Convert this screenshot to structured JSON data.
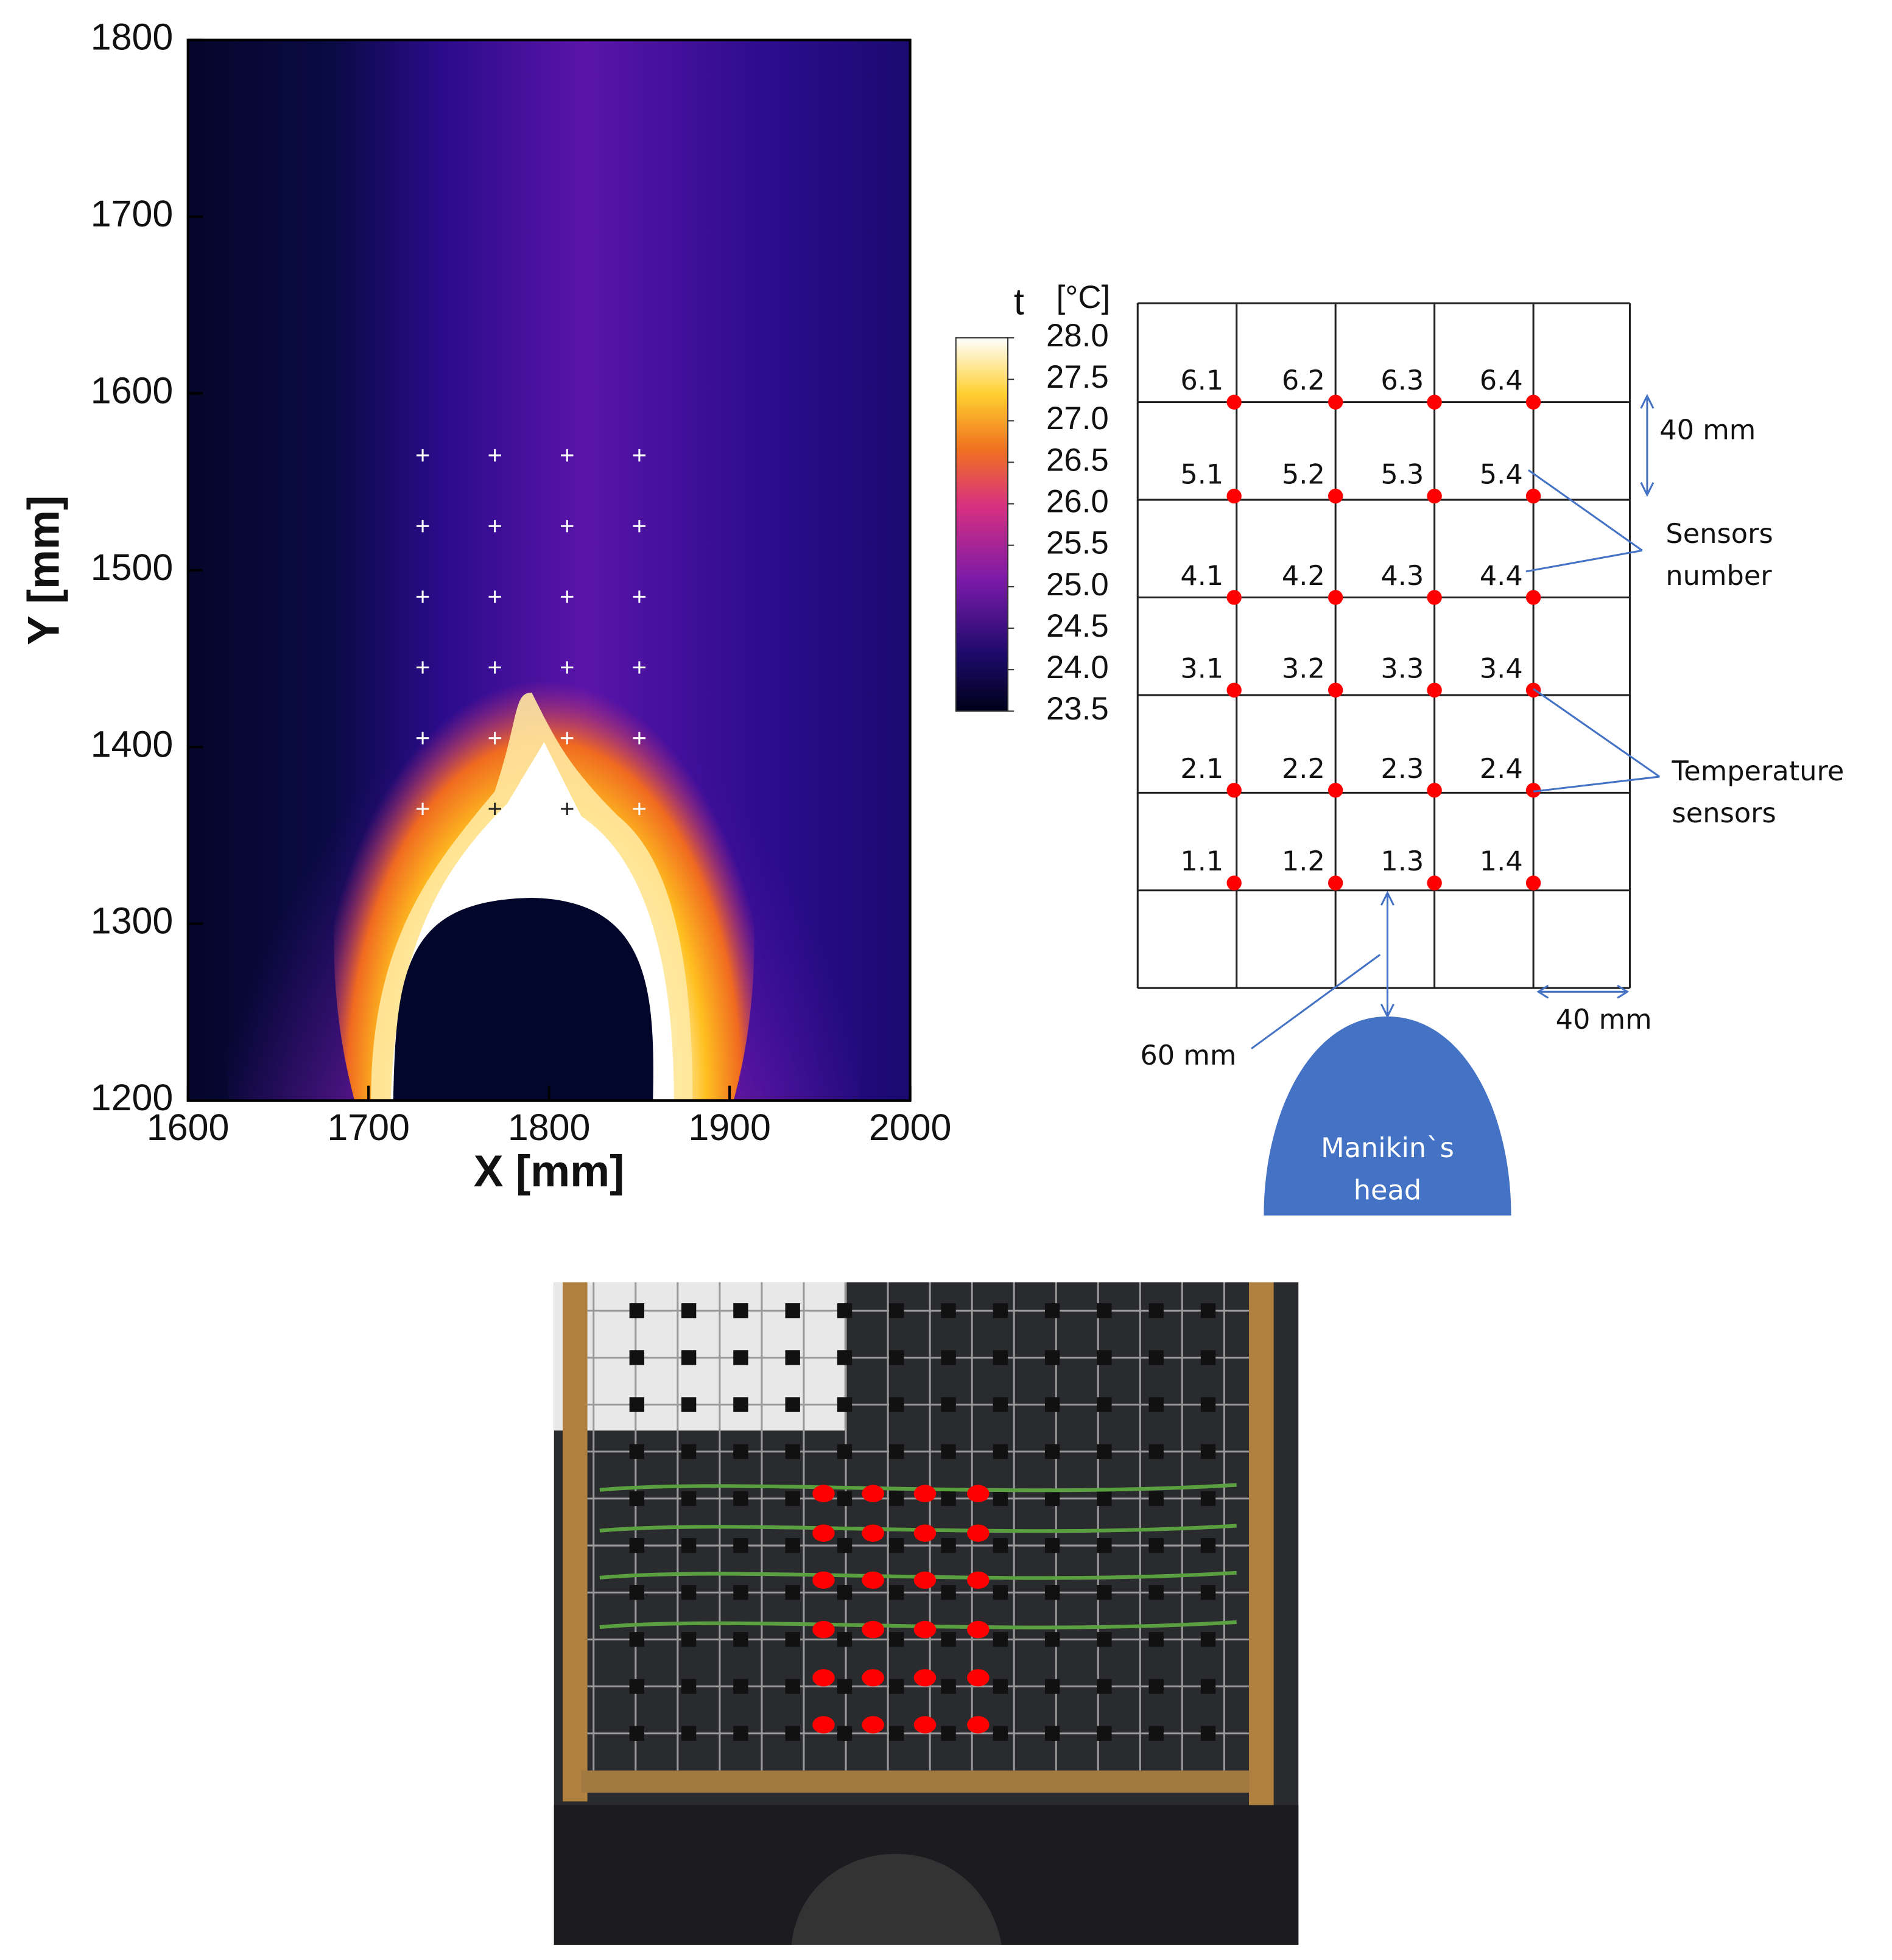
{
  "chart_data": {
    "type": "heatmap",
    "xlabel": "X [mm]",
    "ylabel": "Y [mm]",
    "xlim": [
      1600,
      2000
    ],
    "ylim": [
      1200,
      1800
    ],
    "xticks": [
      1600,
      1700,
      1800,
      1900,
      2000
    ],
    "yticks": [
      1200,
      1300,
      1400,
      1500,
      1600,
      1700,
      1800
    ],
    "sensor_x": [
      1730,
      1770,
      1810,
      1850
    ],
    "sensor_y": [
      1365,
      1405,
      1445,
      1485,
      1525,
      1565
    ],
    "colorbar": {
      "title": "t",
      "unit": "[°C]",
      "lim": [
        23.5,
        28.0
      ],
      "ticks": [
        {
          "value": 28,
          "label": "28.0"
        },
        27.5,
        {
          "value": 27,
          "label": "27.0"
        },
        26.5,
        {
          "value": 26,
          "label": "26.0"
        },
        25.5,
        {
          "value": 25,
          "label": "25.0"
        },
        24.5,
        {
          "value": 24,
          "label": "24.0"
        },
        23.5
      ]
    }
  },
  "diagram": {
    "sensor_labels": [
      [
        "6.1",
        "6.2",
        "6.3",
        "6.4"
      ],
      [
        "5.1",
        "5.2",
        "5.3",
        "5.4"
      ],
      [
        "4.1",
        "4.2",
        "4.3",
        "4.4"
      ],
      [
        "3.1",
        "3.2",
        "3.3",
        "3.4"
      ],
      [
        "2.1",
        "2.2",
        "2.3",
        "2.4"
      ],
      [
        "1.1",
        "1.2",
        "1.3",
        "1.4"
      ]
    ],
    "spacing_vertical": "40 mm",
    "spacing_horizontal": "40 mm",
    "head_distance": "60 mm",
    "sensors_number": [
      "Sensors",
      "number"
    ],
    "temperature_sensors": [
      "Temperature",
      "sensors"
    ],
    "head": [
      "Manikin`s",
      "head"
    ]
  }
}
